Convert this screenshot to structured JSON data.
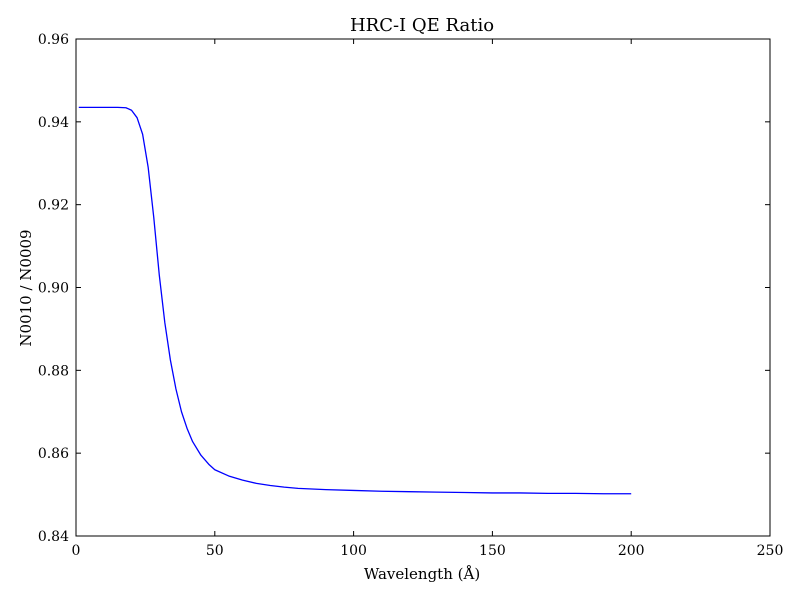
{
  "chart_data": {
    "type": "line",
    "title": "HRC-I QE Ratio",
    "xlabel": "Wavelength (Å)",
    "ylabel": "N0010 / N0009",
    "xlim": [
      0,
      250
    ],
    "ylim": [
      0.84,
      0.96
    ],
    "xticks": [
      0,
      50,
      100,
      150,
      200,
      250
    ],
    "xtick_labels": [
      "0",
      "50",
      "100",
      "150",
      "200",
      "250"
    ],
    "yticks": [
      0.84,
      0.86,
      0.88,
      0.9,
      0.92,
      0.94,
      0.96
    ],
    "ytick_labels": [
      "0.84",
      "0.86",
      "0.88",
      "0.90",
      "0.92",
      "0.94",
      "0.96"
    ],
    "grid": false,
    "series": [
      {
        "color": "#0000ff",
        "x": [
          1,
          5,
          10,
          15,
          18,
          20,
          22,
          24,
          26,
          28,
          30,
          32,
          34,
          36,
          38,
          40,
          42,
          45,
          48,
          50,
          55,
          60,
          65,
          70,
          75,
          80,
          90,
          100,
          110,
          120,
          130,
          140,
          150,
          160,
          170,
          180,
          190,
          200
        ],
        "y": [
          0.9435,
          0.9435,
          0.9435,
          0.9435,
          0.9434,
          0.9428,
          0.941,
          0.937,
          0.929,
          0.917,
          0.903,
          0.8915,
          0.8825,
          0.8755,
          0.87,
          0.866,
          0.8628,
          0.8595,
          0.8572,
          0.856,
          0.8545,
          0.8535,
          0.8527,
          0.8522,
          0.8518,
          0.8515,
          0.8512,
          0.851,
          0.8508,
          0.8507,
          0.8506,
          0.8505,
          0.8504,
          0.8504,
          0.8503,
          0.8503,
          0.8502,
          0.8502
        ]
      }
    ]
  }
}
